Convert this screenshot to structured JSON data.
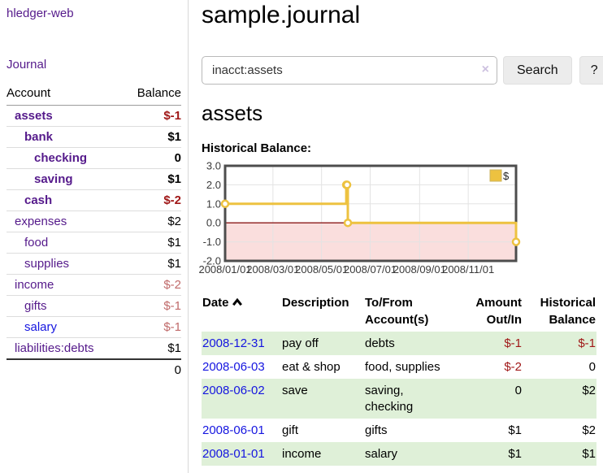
{
  "app": {
    "brand": "hledger-web"
  },
  "sidebar": {
    "nav_journal": "Journal",
    "accounts": {
      "header_account": "Account",
      "header_balance": "Balance",
      "rows": [
        {
          "name": "assets",
          "balance": "$-1",
          "depth": 1,
          "bold": true,
          "name_color": "purple",
          "balance_tone": "negative"
        },
        {
          "name": "bank",
          "balance": "$1",
          "depth": 2,
          "bold": true,
          "name_color": "purple",
          "balance_tone": "normal"
        },
        {
          "name": "checking",
          "balance": "0",
          "depth": 3,
          "bold": true,
          "name_color": "purple",
          "balance_tone": "normal"
        },
        {
          "name": "saving",
          "balance": "$1",
          "depth": 3,
          "bold": true,
          "name_color": "purple",
          "balance_tone": "normal"
        },
        {
          "name": "cash",
          "balance": "$-2",
          "depth": 2,
          "bold": true,
          "name_color": "purple",
          "balance_tone": "negative"
        },
        {
          "name": "expenses",
          "balance": "$2",
          "depth": 1,
          "bold": false,
          "name_color": "purple",
          "balance_tone": "normal"
        },
        {
          "name": "food",
          "balance": "$1",
          "depth": 2,
          "bold": false,
          "name_color": "purple",
          "balance_tone": "normal"
        },
        {
          "name": "supplies",
          "balance": "$1",
          "depth": 2,
          "bold": false,
          "name_color": "purple",
          "balance_tone": "normal"
        },
        {
          "name": "income",
          "balance": "$-2",
          "depth": 1,
          "bold": false,
          "name_color": "purple",
          "balance_tone": "negative-soft"
        },
        {
          "name": "gifts",
          "balance": "$-1",
          "depth": 2,
          "bold": false,
          "name_color": "purple",
          "balance_tone": "negative-soft"
        },
        {
          "name": "salary",
          "balance": "$-1",
          "depth": 2,
          "bold": false,
          "name_color": "blue",
          "balance_tone": "negative-soft"
        },
        {
          "name": "liabilities:debts",
          "balance": "$1",
          "depth": 1,
          "bold": false,
          "name_color": "purple",
          "balance_tone": "normal"
        }
      ],
      "total": "0"
    }
  },
  "main": {
    "title": "sample.journal",
    "search": {
      "value": "inacct:assets",
      "clear_icon": "×",
      "button_label": "Search",
      "help_label": "?"
    },
    "account_heading": "assets",
    "chart_heading": "Historical Balance:"
  },
  "chart_data": {
    "type": "line",
    "step": true,
    "title": "Historical Balance:",
    "legend": "$",
    "legend_position": "top-right",
    "x_range": [
      "2008-01-01",
      "2008-12-31"
    ],
    "ylim": [
      -2,
      3
    ],
    "yticks": [
      3,
      2,
      1,
      0,
      -1,
      -2
    ],
    "xticks": [
      {
        "date": "2008-01-01",
        "label": "2008/01/01"
      },
      {
        "date": "2008-03-01",
        "label": "2008/03/01"
      },
      {
        "date": "2008-05-01",
        "label": "2008/05/01"
      },
      {
        "date": "2008-07-01",
        "label": "2008/07/01"
      },
      {
        "date": "2008-09-01",
        "label": "2008/09/01"
      },
      {
        "date": "2008-11-01",
        "label": "2008/11/01"
      }
    ],
    "grid": true,
    "negative_region_shaded": true,
    "series": [
      {
        "name": "$",
        "points": [
          [
            "2008-01-01",
            1
          ],
          [
            "2008-06-01",
            2
          ],
          [
            "2008-06-02",
            2
          ],
          [
            "2008-06-03",
            0
          ],
          [
            "2008-12-31",
            -1
          ]
        ]
      }
    ]
  },
  "transactions": {
    "headers": {
      "date": "Date",
      "description": "Description",
      "account": "To/From\nAccount(s)",
      "amount": "Amount\nOut/In",
      "balance": "Historical\nBalance"
    },
    "rows": [
      {
        "date": "2008-12-31",
        "description": "pay off",
        "accounts": "debts",
        "amount": "$-1",
        "balance": "$-1",
        "amount_tone": "negative",
        "balance_tone": "negative",
        "shaded": true
      },
      {
        "date": "2008-06-03",
        "description": "eat & shop",
        "accounts": "food, supplies",
        "amount": "$-2",
        "balance": "0",
        "amount_tone": "negative",
        "balance_tone": "normal",
        "shaded": false
      },
      {
        "date": "2008-06-02",
        "description": "save",
        "accounts": "saving,\nchecking",
        "amount": "0",
        "balance": "$2",
        "amount_tone": "normal",
        "balance_tone": "normal",
        "shaded": true
      },
      {
        "date": "2008-06-01",
        "description": "gift",
        "accounts": "gifts",
        "amount": "$1",
        "balance": "$2",
        "amount_tone": "normal",
        "balance_tone": "normal",
        "shaded": false
      },
      {
        "date": "2008-01-01",
        "description": "income",
        "accounts": "salary",
        "amount": "$1",
        "balance": "$1",
        "amount_tone": "normal",
        "balance_tone": "normal",
        "shaded": true
      }
    ]
  },
  "colors": {
    "link_purple": "#551a8b",
    "link_blue": "#1515e0",
    "neg_strong": "#a01818",
    "neg_soft": "#c06a6a",
    "row_green": "#dff0d8",
    "chart_line": "#edc240",
    "chart_marker_fill": "#ffffff",
    "chart_neg_bg": "#fadedd",
    "chart_zero": "#8b1a1a",
    "chart_grid": "#e3e3e3",
    "chart_frame": "#4d4d4d",
    "chart_tick_text": "#3a3a3a"
  }
}
